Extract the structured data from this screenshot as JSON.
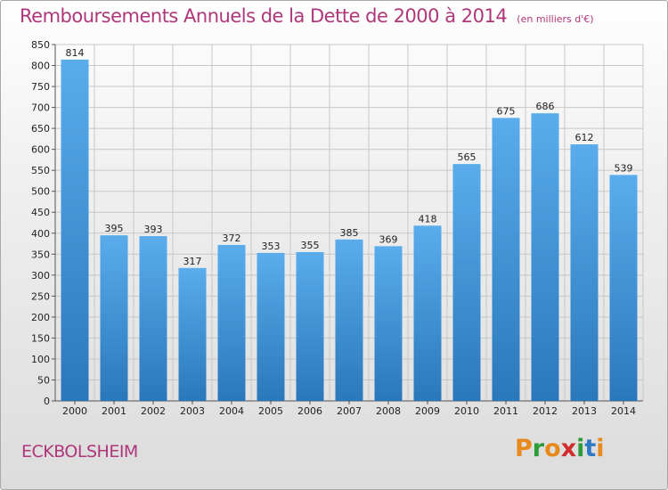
{
  "header": {
    "title": "Remboursements Annuels de la Dette de 2000 à 2014",
    "unit": "(en milliers d'€)"
  },
  "footer": {
    "commune": "ECKBOLSHEIM",
    "logo_text": "Proxiti"
  },
  "colors": {
    "title": "#b0367a",
    "bar_top": "#5aaceb",
    "bar_bottom": "#2a78bb",
    "grid": "#c8c8c8",
    "logo_letters": [
      "#e8891c",
      "#2d9b3a",
      "#e8891c",
      "#d12b2b",
      "#2d9b3a",
      "#2f79c4",
      "#e8891c"
    ]
  },
  "chart_data": {
    "type": "bar",
    "title": "Remboursements Annuels de la Dette de 2000 à 2014",
    "xlabel": "",
    "ylabel": "",
    "categories": [
      "2000",
      "2001",
      "2002",
      "2003",
      "2004",
      "2005",
      "2006",
      "2007",
      "2008",
      "2009",
      "2010",
      "2011",
      "2012",
      "2013",
      "2014"
    ],
    "values": [
      814,
      395,
      393,
      317,
      372,
      353,
      355,
      385,
      369,
      418,
      565,
      675,
      686,
      612,
      539
    ],
    "ylim": [
      0,
      850
    ],
    "ytick_step": 50,
    "grid": true,
    "data_labels": true
  }
}
